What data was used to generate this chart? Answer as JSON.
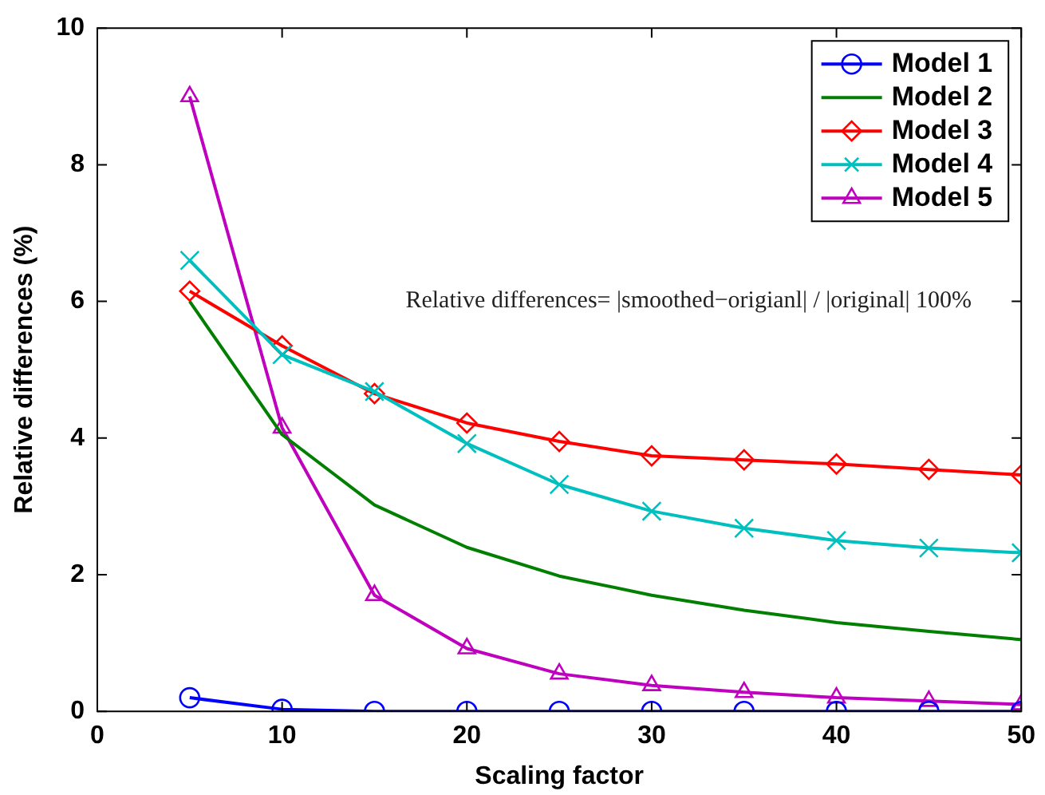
{
  "chart_data": {
    "type": "line",
    "xlabel": "Scaling factor",
    "ylabel": "Relative differences (%)",
    "x": [
      5,
      10,
      15,
      20,
      25,
      30,
      35,
      40,
      45,
      50
    ],
    "xlim": [
      0,
      50
    ],
    "xticks": [
      0,
      10,
      20,
      30,
      40,
      50
    ],
    "ylim": [
      0,
      10
    ],
    "yticks": [
      0,
      2,
      4,
      6,
      8,
      10
    ],
    "grid": false,
    "legend": "top right",
    "annotations": [
      "Relative differences= |smoothed−origianl| / |original| 100%"
    ],
    "series": [
      {
        "name": "Model 1",
        "color": "#0000ff",
        "marker": "circle",
        "values": [
          0.2,
          0.03,
          0,
          0,
          0,
          0,
          0,
          0,
          0,
          0
        ]
      },
      {
        "name": "Model 2",
        "color": "#007f00",
        "marker": "none",
        "values": [
          6.0,
          4.05,
          3.02,
          2.4,
          1.98,
          1.7,
          1.48,
          1.3,
          1.17,
          1.05
        ]
      },
      {
        "name": "Model 3",
        "color": "#ff0000",
        "marker": "diamond",
        "values": [
          6.15,
          5.35,
          4.65,
          4.22,
          3.95,
          3.74,
          3.68,
          3.62,
          3.54,
          3.46
        ]
      },
      {
        "name": "Model 4",
        "color": "#00bfbf",
        "marker": "cross",
        "values": [
          6.6,
          5.22,
          4.68,
          3.92,
          3.32,
          2.93,
          2.68,
          2.5,
          2.39,
          2.32
        ]
      },
      {
        "name": "Model 5",
        "color": "#bf00bf",
        "marker": "triangle",
        "values": [
          9.0,
          4.15,
          1.7,
          0.92,
          0.55,
          0.38,
          0.28,
          0.2,
          0.15,
          0.1
        ]
      }
    ]
  }
}
